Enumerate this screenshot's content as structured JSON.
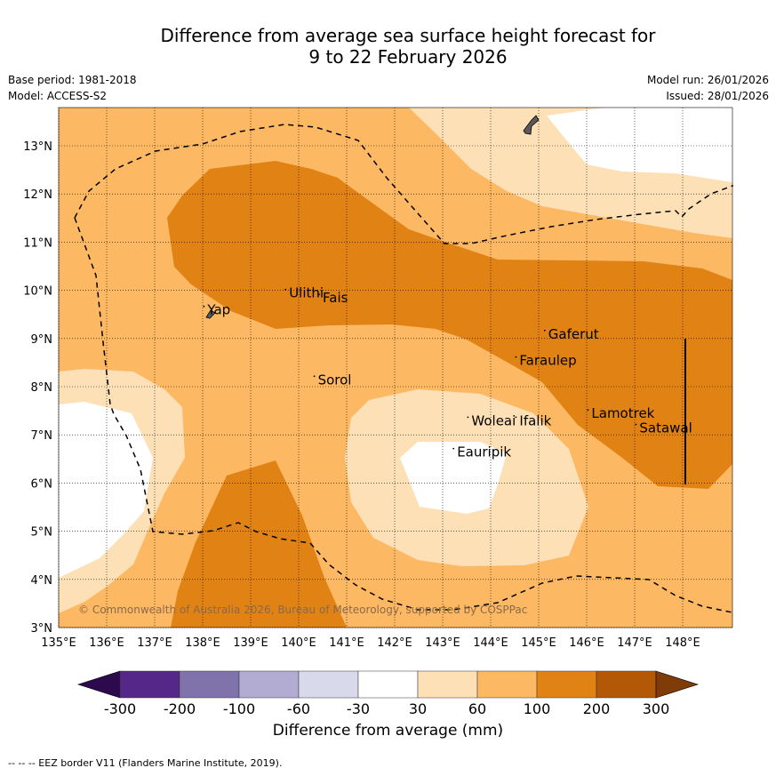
{
  "title_line1": "Difference from average sea surface height forecast for",
  "title_line2": "9 to 22 February 2026",
  "meta_left": [
    "Base period: 1981-2018",
    "Model: ACCESS-S2"
  ],
  "meta_right": [
    "Model run: 26/01/2026",
    "Issued: 28/01/2026"
  ],
  "lon_ticks": [
    "135°E",
    "136°E",
    "137°E",
    "138°E",
    "139°E",
    "140°E",
    "141°E",
    "142°E",
    "143°E",
    "144°E",
    "145°E",
    "146°E",
    "147°E",
    "148°E"
  ],
  "lat_ticks": [
    "3°N",
    "4°N",
    "5°N",
    "6°N",
    "7°N",
    "8°N",
    "9°N",
    "10°N",
    "11°N",
    "12°N",
    "13°N"
  ],
  "places": [
    {
      "name": "Ulithi",
      "lon": 139.8,
      "lat": 9.85
    },
    {
      "name": "Fais",
      "lon": 140.5,
      "lat": 9.75
    },
    {
      "name": "Yap",
      "lon": 138.1,
      "lat": 9.5
    },
    {
      "name": "Gaferut",
      "lon": 145.2,
      "lat": 9.0
    },
    {
      "name": "Faraulep",
      "lon": 144.6,
      "lat": 8.45
    },
    {
      "name": "Sorol",
      "lon": 140.4,
      "lat": 8.05
    },
    {
      "name": "Lamotrek",
      "lon": 146.1,
      "lat": 7.35
    },
    {
      "name": "Woleai",
      "lon": 143.6,
      "lat": 7.2
    },
    {
      "name": "Ifalik",
      "lon": 144.6,
      "lat": 7.2
    },
    {
      "name": "Satawal",
      "lon": 147.1,
      "lat": 7.05
    },
    {
      "name": "Eauripik",
      "lon": 143.3,
      "lat": 6.55
    }
  ],
  "copyright": "© Commonwealth of Australia 2026, Bureau of Meteorology, supported by COSPPac",
  "colorbar": {
    "ticks": [
      "-300",
      "-200",
      "-100",
      "-60",
      "-30",
      "30",
      "60",
      "100",
      "200",
      "300"
    ],
    "colors": {
      "below_-300": "#2d0a4e",
      "-300_-200": "#542788",
      "-200_-100": "#8073ac",
      "-100_-60": "#b2abd2",
      "-60_-30": "#d8daeb",
      "-30_30": "#ffffff",
      "30_60": "#fee0b6",
      "60_100": "#fdb863",
      "100_200": "#e08214",
      "200_300": "#b35806",
      "above_300": "#7f3b08"
    },
    "label": "Difference from average (mm)"
  },
  "footer": "--  --  -- EEZ border V11 (Flanders Marine Institute, 2019)."
}
